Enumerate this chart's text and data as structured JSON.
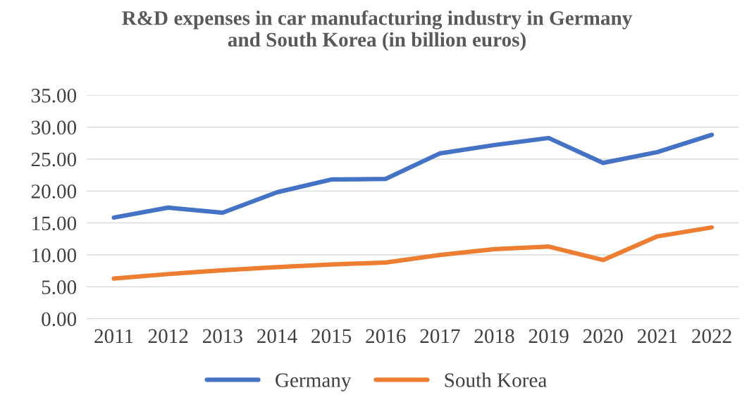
{
  "chart_data": {
    "type": "line",
    "title": "R&D expenses in car manufacturing industry in Germany\nand South Korea (in billion euros)",
    "categories": [
      "2011",
      "2012",
      "2013",
      "2014",
      "2015",
      "2016",
      "2017",
      "2018",
      "2019",
      "2020",
      "2021",
      "2022"
    ],
    "series": [
      {
        "name": "Germany",
        "color": "#4472c4",
        "values": [
          15.85,
          17.4,
          16.6,
          19.8,
          21.8,
          21.9,
          25.9,
          27.2,
          28.3,
          24.4,
          26.1,
          28.8
        ]
      },
      {
        "name": "South Korea",
        "color": "#ed7d31",
        "values": [
          6.3,
          7.0,
          7.6,
          8.1,
          8.5,
          8.8,
          10.0,
          10.9,
          11.3,
          9.2,
          12.9,
          14.3
        ]
      }
    ],
    "ylim": [
      0,
      35
    ],
    "yticks": [
      {
        "value": 0,
        "label": "0.00"
      },
      {
        "value": 5,
        "label": "5.00"
      },
      {
        "value": 10,
        "label": "10.00"
      },
      {
        "value": 15,
        "label": "15.00"
      },
      {
        "value": 20,
        "label": "20.00"
      },
      {
        "value": 25,
        "label": "25.00"
      },
      {
        "value": 30,
        "label": "30.00"
      },
      {
        "value": 35,
        "label": "35.00"
      }
    ],
    "grid": "y",
    "legend": "bottom",
    "marker": "none",
    "line_style": "solid"
  }
}
